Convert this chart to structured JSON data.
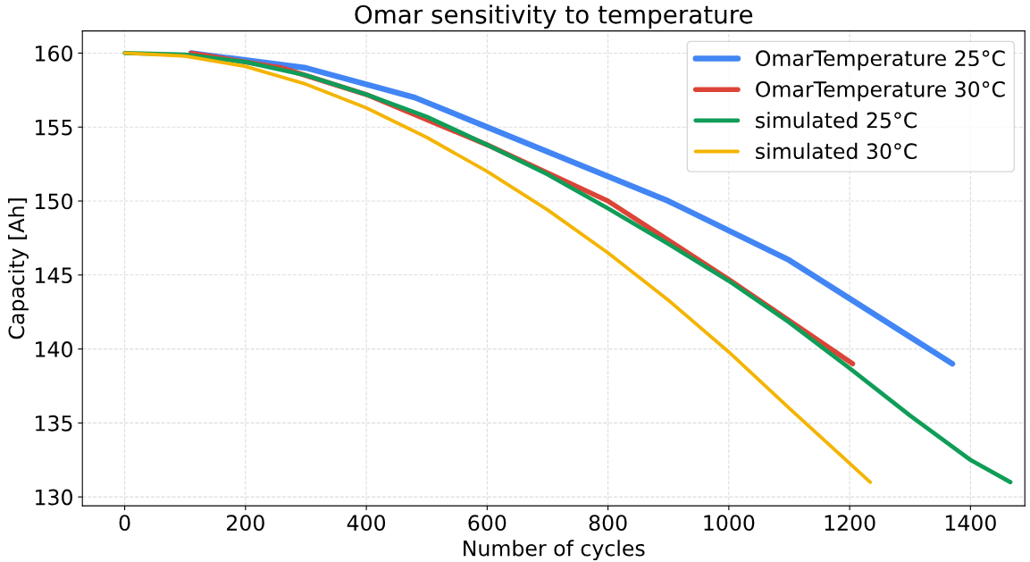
{
  "chart_data": {
    "type": "line",
    "title": "Omar sensitivity to temperature",
    "xlabel": "Number of cycles",
    "ylabel": "Capacity [Ah]",
    "xlim": [
      -70,
      1490
    ],
    "ylim": [
      129.4,
      161.5
    ],
    "xticks": [
      0,
      200,
      400,
      600,
      800,
      1000,
      1200,
      1400
    ],
    "yticks": [
      130,
      135,
      140,
      145,
      150,
      155,
      160
    ],
    "grid": true,
    "legend": "top right",
    "marker": "none",
    "line_style": "solid",
    "series": [
      {
        "name": "OmarTemperature 25°C",
        "color": "#4285f4",
        "x": [
          110,
          300,
          480,
          600,
          900,
          1100,
          1370
        ],
        "values": [
          160,
          159,
          157,
          155,
          150,
          146,
          139
        ]
      },
      {
        "name": "OmarTemperature 30°C",
        "color": "#db4437",
        "x": [
          110,
          260,
          400,
          600,
          800,
          1000,
          1205
        ],
        "values": [
          160,
          159,
          157.2,
          153.8,
          150,
          144.7,
          139
        ]
      },
      {
        "name": "simulated 25°C",
        "color": "#0f9d58",
        "x": [
          0,
          100,
          200,
          300,
          400,
          500,
          600,
          700,
          800,
          900,
          1000,
          1100,
          1200,
          1300,
          1400,
          1466
        ],
        "values": [
          160,
          159.9,
          159.4,
          158.5,
          157.2,
          155.7,
          153.8,
          151.8,
          149.5,
          147.1,
          144.6,
          141.8,
          138.7,
          135.5,
          132.5,
          131
        ]
      },
      {
        "name": "simulated 30°C",
        "color": "#f4b400",
        "x": [
          0,
          100,
          200,
          300,
          400,
          500,
          600,
          700,
          800,
          900,
          1000,
          1100,
          1234
        ],
        "values": [
          160,
          159.8,
          159.1,
          157.9,
          156.3,
          154.3,
          152,
          149.4,
          146.5,
          143.3,
          139.8,
          136,
          131
        ]
      }
    ]
  }
}
